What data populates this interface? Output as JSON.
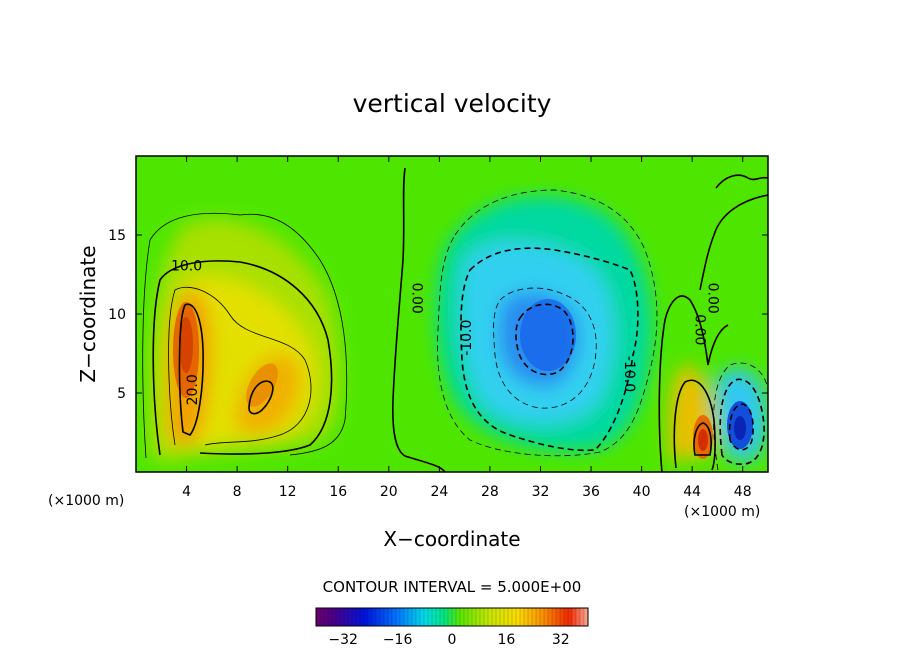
{
  "chart_data": {
    "type": "heatmap",
    "subtype": "filled-contour",
    "title": "vertical velocity",
    "xlabel": "X−coordinate",
    "ylabel": "Z−coordinate",
    "x_unit_left": "(×1000 m)",
    "x_unit_right": "(×1000 m)",
    "xlim": [
      0,
      50
    ],
    "ylim": [
      0,
      20
    ],
    "x_ticks": [
      "4",
      "8",
      "12",
      "16",
      "20",
      "24",
      "28",
      "32",
      "36",
      "40",
      "44",
      "48"
    ],
    "x_tick_values": [
      4,
      8,
      12,
      16,
      20,
      24,
      28,
      32,
      36,
      40,
      44,
      48
    ],
    "y_ticks": [
      "5",
      "10",
      "15"
    ],
    "y_tick_values": [
      5,
      10,
      15
    ],
    "contour_interval_label": "CONTOUR INTERVAL = 5.000E+00",
    "contour_interval": 5.0,
    "contour_labels": [
      {
        "text": "10.0",
        "x": 4,
        "z": 13,
        "angle": 0
      },
      {
        "text": "20.0",
        "x": 4.5,
        "z": 5.2,
        "angle": -90
      },
      {
        "text": "0.00",
        "x": 22.2,
        "z": 11,
        "angle": 90
      },
      {
        "text": "-10.0",
        "x": 26.2,
        "z": 8.5,
        "angle": -90
      },
      {
        "text": "-10.0",
        "x": 39,
        "z": 6.2,
        "angle": 90
      },
      {
        "text": "0.00",
        "x": 44.6,
        "z": 9,
        "angle": 90
      },
      {
        "text": "0.00",
        "x": 45.6,
        "z": 11,
        "angle": 90
      }
    ],
    "features": [
      {
        "kind": "updraft",
        "x": 4,
        "z": 8,
        "peak": 30
      },
      {
        "kind": "updraft",
        "x": 10,
        "z": 5,
        "peak": 22
      },
      {
        "kind": "downdraft",
        "x": 32,
        "z": 9,
        "peak": -30
      },
      {
        "kind": "updraft",
        "x": 44.5,
        "z": 2.5,
        "peak": 30
      },
      {
        "kind": "downdraft",
        "x": 47.5,
        "z": 3,
        "peak": -33
      }
    ],
    "colorbar": {
      "min": -40,
      "max": 40,
      "ticks": [
        "−32",
        "−16",
        "0",
        "16",
        "32"
      ],
      "tick_values": [
        -32,
        -16,
        0,
        16,
        32
      ]
    }
  }
}
